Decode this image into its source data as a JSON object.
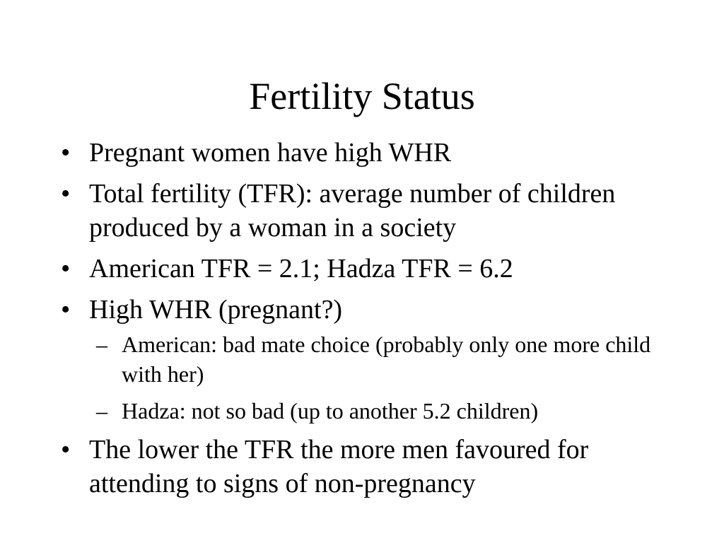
{
  "slide": {
    "title": "Fertility Status",
    "bullets": [
      {
        "marker": "•",
        "text": "Pregnant women have high WHR"
      },
      {
        "marker": "•",
        "text": "Total fertility (TFR): average number of children produced by a woman in a society"
      },
      {
        "marker": "•",
        "text": "American TFR = 2.1; Hadza TFR = 6.2"
      },
      {
        "marker": "•",
        "text": "High WHR (pregnant?)",
        "sub": [
          {
            "marker": "–",
            "text": "American: bad mate choice (probably only one more child with her)"
          },
          {
            "marker": "–",
            "text": "Hadza: not so bad (up to another 5.2 children)"
          }
        ]
      },
      {
        "marker": "•",
        "text": "The lower the TFR the more men favoured for attending to signs of non-pregnancy"
      }
    ]
  }
}
